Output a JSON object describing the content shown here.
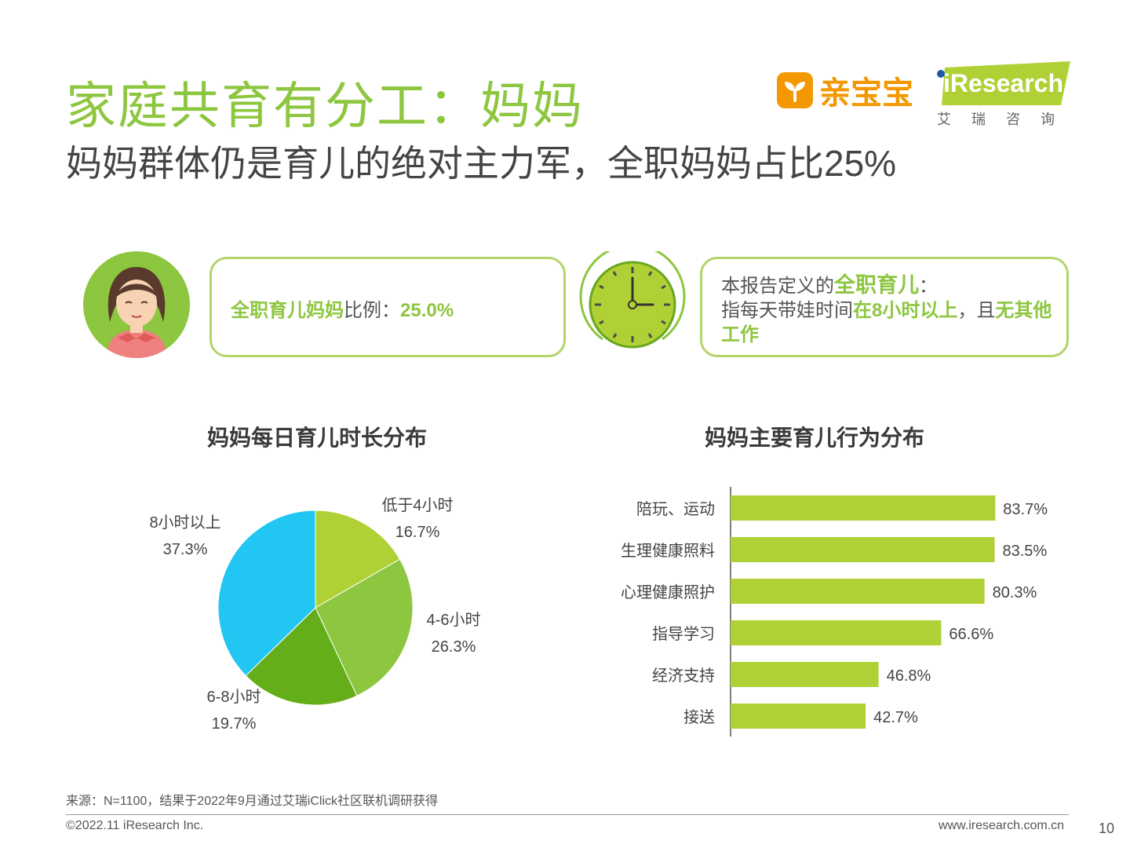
{
  "header": {
    "title": "家庭共育有分工：妈妈",
    "subtitle": "妈妈群体仍是育儿的绝对主力军，全职妈妈占比25%"
  },
  "logos": {
    "qinbaobao": "亲宝宝",
    "iresearch": "iResearch",
    "iresearch_cn": "艾瑞咨询"
  },
  "info": {
    "ratio_label": "全职育儿妈妈",
    "ratio_mid": "比例：",
    "ratio_value": "25.0%",
    "def_prefix": "本报告定义的",
    "def_term": "全职育儿",
    "def_colon": "：",
    "def_line2_a": "指每天带娃时间",
    "def_line2_b": "在8小时以上",
    "def_line2_c": "，且",
    "def_line2_d": "无其他工作"
  },
  "colors": {
    "brand_green": "#8dc63f",
    "bar_green": "#b0d135",
    "pie": [
      "#b0d135",
      "#8dc63f",
      "#64ae1a",
      "#22c6f2"
    ],
    "orange": "#f39800"
  },
  "chart_data": [
    {
      "type": "pie",
      "title": "妈妈每日育儿时长分布",
      "categories": [
        "低于4小时",
        "4-6小时",
        "6-8小时",
        "8小时以上"
      ],
      "values": [
        16.7,
        26.3,
        19.7,
        37.3
      ],
      "value_labels": [
        "16.7%",
        "26.3%",
        "19.7%",
        "37.3%"
      ]
    },
    {
      "type": "bar",
      "orientation": "horizontal",
      "title": "妈妈主要育儿行为分布",
      "categories": [
        "陪玩、运动",
        "生理健康照料",
        "心理健康照护",
        "指导学习",
        "经济支持",
        "接送"
      ],
      "values": [
        83.7,
        83.5,
        80.3,
        66.6,
        46.8,
        42.7
      ],
      "value_labels": [
        "83.7%",
        "83.5%",
        "80.3%",
        "66.6%",
        "46.8%",
        "42.7%"
      ]
    }
  ],
  "footer": {
    "source": "来源：N=1100，结果于2022年9月通过艾瑞iClick社区联机调研获得",
    "copyright": "©2022.11 iResearch Inc.",
    "website": "www.iresearch.com.cn",
    "page": "10"
  }
}
